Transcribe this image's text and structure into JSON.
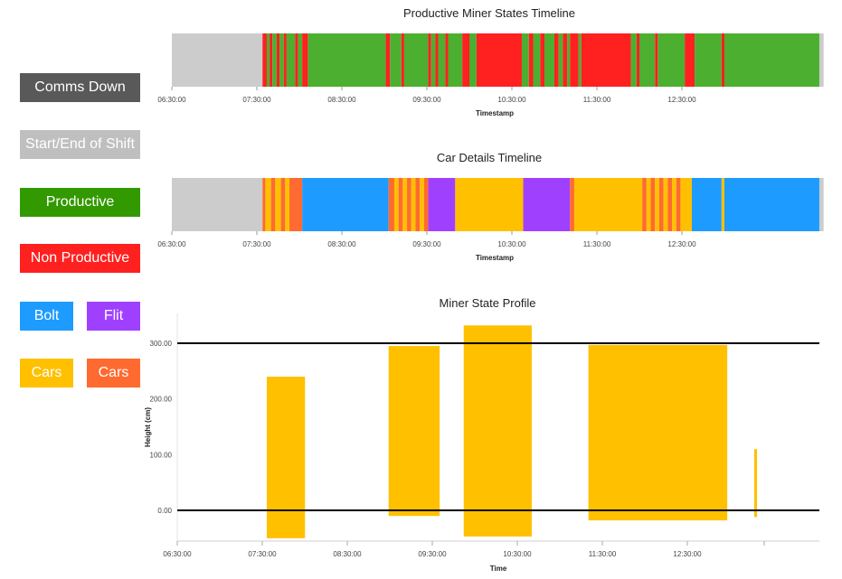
{
  "legend": [
    {
      "label": "Comms Down",
      "color": "#595959",
      "key": "comms-down"
    },
    {
      "label": "Start/End of Shift",
      "color": "#bfbfbf",
      "key": "start-end-of-shift"
    },
    {
      "label": "Productive",
      "color": "#339900",
      "key": "productive"
    },
    {
      "label": "Non Productive",
      "color": "#ff2020",
      "key": "non-productive"
    },
    {
      "label": "Bolt",
      "color": "#1e9bff",
      "key": "bolt"
    },
    {
      "label": "Flit",
      "color": "#a040ff",
      "key": "flit"
    },
    {
      "label": "Cars",
      "color": "#ffc000",
      "key": "cars-yellow"
    },
    {
      "label": "Cars",
      "color": "#ff6a30",
      "key": "cars-orange"
    }
  ],
  "chart_data": [
    {
      "type": "timeline",
      "title": "Productive Miner States Timeline",
      "xlabel": "Timestamp",
      "x_ticks": [
        "06:30:00",
        "07:30:00",
        "08:30:00",
        "09:30:00",
        "10:30:00",
        "11:30:00",
        "12:30:00"
      ],
      "x_range": [
        "06:30",
        "14:10"
      ],
      "segments": [
        {
          "start": "06:30",
          "end": "07:34",
          "state": "Start/End of Shift",
          "color": "#cccccc"
        },
        {
          "start": "07:34",
          "end": "07:37",
          "state": "Non Productive",
          "color": "#ff2020"
        },
        {
          "start": "07:37",
          "end": "07:39",
          "state": "Productive",
          "color": "#4caf30"
        },
        {
          "start": "07:39",
          "end": "07:41",
          "state": "Non Productive",
          "color": "#ff2020"
        },
        {
          "start": "07:41",
          "end": "07:44",
          "state": "Productive",
          "color": "#4caf30"
        },
        {
          "start": "07:44",
          "end": "07:46",
          "state": "Non Productive",
          "color": "#ff2020"
        },
        {
          "start": "07:46",
          "end": "07:49",
          "state": "Productive",
          "color": "#4caf30"
        },
        {
          "start": "07:49",
          "end": "07:51",
          "state": "Non Productive",
          "color": "#ff2020"
        },
        {
          "start": "07:51",
          "end": "07:57",
          "state": "Productive",
          "color": "#4caf30"
        },
        {
          "start": "07:57",
          "end": "07:59",
          "state": "Non Productive",
          "color": "#ff2020"
        },
        {
          "start": "07:59",
          "end": "08:02",
          "state": "Productive",
          "color": "#4caf30"
        },
        {
          "start": "08:02",
          "end": "08:06",
          "state": "Non Productive",
          "color": "#ff2020"
        },
        {
          "start": "08:06",
          "end": "09:01",
          "state": "Productive",
          "color": "#4caf30"
        },
        {
          "start": "09:01",
          "end": "09:04",
          "state": "Non Productive",
          "color": "#ff2020"
        },
        {
          "start": "09:04",
          "end": "09:12",
          "state": "Productive",
          "color": "#4caf30"
        },
        {
          "start": "09:12",
          "end": "09:14",
          "state": "Non Productive",
          "color": "#ff2020"
        },
        {
          "start": "09:14",
          "end": "09:31",
          "state": "Productive",
          "color": "#4caf30"
        },
        {
          "start": "09:31",
          "end": "09:33",
          "state": "Non Productive",
          "color": "#ff2020"
        },
        {
          "start": "09:33",
          "end": "09:36",
          "state": "Productive",
          "color": "#4caf30"
        },
        {
          "start": "09:36",
          "end": "09:38",
          "state": "Non Productive",
          "color": "#ff2020"
        },
        {
          "start": "09:38",
          "end": "09:43",
          "state": "Productive",
          "color": "#4caf30"
        },
        {
          "start": "09:43",
          "end": "09:45",
          "state": "Non Productive",
          "color": "#ff2020"
        },
        {
          "start": "09:45",
          "end": "09:55",
          "state": "Productive",
          "color": "#4caf30"
        },
        {
          "start": "09:55",
          "end": "10:00",
          "state": "Non Productive",
          "color": "#ff2020"
        },
        {
          "start": "10:00",
          "end": "10:05",
          "state": "Productive",
          "color": "#4caf30"
        },
        {
          "start": "10:05",
          "end": "10:37",
          "state": "Non Productive",
          "color": "#ff2020"
        },
        {
          "start": "10:37",
          "end": "10:42",
          "state": "Productive",
          "color": "#4caf30"
        },
        {
          "start": "10:42",
          "end": "10:45",
          "state": "Non Productive",
          "color": "#ff2020"
        },
        {
          "start": "10:45",
          "end": "10:50",
          "state": "Productive",
          "color": "#4caf30"
        },
        {
          "start": "10:50",
          "end": "10:53",
          "state": "Non Productive",
          "color": "#ff2020"
        },
        {
          "start": "10:53",
          "end": "11:00",
          "state": "Productive",
          "color": "#4caf30"
        },
        {
          "start": "11:00",
          "end": "11:03",
          "state": "Non Productive",
          "color": "#ff2020"
        },
        {
          "start": "11:03",
          "end": "11:06",
          "state": "Productive",
          "color": "#4caf30"
        },
        {
          "start": "11:06",
          "end": "11:09",
          "state": "Non Productive",
          "color": "#ff2020"
        },
        {
          "start": "11:09",
          "end": "11:11",
          "state": "Productive",
          "color": "#4caf30"
        },
        {
          "start": "11:11",
          "end": "11:17",
          "state": "Non Productive",
          "color": "#ff2020"
        },
        {
          "start": "11:17",
          "end": "11:19",
          "state": "Productive",
          "color": "#4caf30"
        },
        {
          "start": "11:19",
          "end": "11:54",
          "state": "Non Productive",
          "color": "#ff2020"
        },
        {
          "start": "11:54",
          "end": "11:58",
          "state": "Productive",
          "color": "#4caf30"
        },
        {
          "start": "11:58",
          "end": "12:00",
          "state": "Non Productive",
          "color": "#ff2020"
        },
        {
          "start": "12:00",
          "end": "12:11",
          "state": "Productive",
          "color": "#4caf30"
        },
        {
          "start": "12:11",
          "end": "12:13",
          "state": "Non Productive",
          "color": "#ff2020"
        },
        {
          "start": "12:13",
          "end": "12:32",
          "state": "Productive",
          "color": "#4caf30"
        },
        {
          "start": "12:32",
          "end": "12:39",
          "state": "Non Productive",
          "color": "#ff2020"
        },
        {
          "start": "12:39",
          "end": "12:58",
          "state": "Productive",
          "color": "#4caf30"
        },
        {
          "start": "12:58",
          "end": "13:00",
          "state": "Non Productive",
          "color": "#ff2020"
        },
        {
          "start": "13:00",
          "end": "14:07",
          "state": "Productive",
          "color": "#4caf30"
        },
        {
          "start": "14:07",
          "end": "14:10",
          "state": "Start/End of Shift",
          "color": "#cccccc"
        }
      ]
    },
    {
      "type": "timeline",
      "title": "Car Details Timeline",
      "xlabel": "Timestamp",
      "x_ticks": [
        "06:30:00",
        "07:30:00",
        "08:30:00",
        "09:30:00",
        "10:30:00",
        "11:30:00",
        "12:30:00"
      ],
      "x_range": [
        "06:30",
        "14:10"
      ],
      "segments": [
        {
          "start": "06:30",
          "end": "07:34",
          "state": "Start/End of Shift",
          "color": "#cccccc"
        },
        {
          "start": "07:34",
          "end": "07:36",
          "state": "Cars",
          "color": "#ff6a30"
        },
        {
          "start": "07:36",
          "end": "07:40",
          "state": "Cars",
          "color": "#ffc000"
        },
        {
          "start": "07:40",
          "end": "07:43",
          "state": "Cars",
          "color": "#ff6a30"
        },
        {
          "start": "07:43",
          "end": "07:47",
          "state": "Cars",
          "color": "#ffc000"
        },
        {
          "start": "07:47",
          "end": "07:50",
          "state": "Cars",
          "color": "#ff6a30"
        },
        {
          "start": "07:50",
          "end": "07:53",
          "state": "Cars",
          "color": "#ffc000"
        },
        {
          "start": "07:53",
          "end": "08:02",
          "state": "Cars",
          "color": "#ff6a30"
        },
        {
          "start": "08:02",
          "end": "09:03",
          "state": "Bolt",
          "color": "#1e9bff"
        },
        {
          "start": "09:03",
          "end": "09:07",
          "state": "Cars",
          "color": "#ff6a30"
        },
        {
          "start": "09:07",
          "end": "09:10",
          "state": "Cars",
          "color": "#ffc000"
        },
        {
          "start": "09:10",
          "end": "09:13",
          "state": "Cars",
          "color": "#ff6a30"
        },
        {
          "start": "09:13",
          "end": "09:16",
          "state": "Cars",
          "color": "#ffc000"
        },
        {
          "start": "09:16",
          "end": "09:19",
          "state": "Cars",
          "color": "#ff6a30"
        },
        {
          "start": "09:19",
          "end": "09:22",
          "state": "Cars",
          "color": "#ffc000"
        },
        {
          "start": "09:22",
          "end": "09:25",
          "state": "Cars",
          "color": "#ff6a30"
        },
        {
          "start": "09:25",
          "end": "09:28",
          "state": "Cars",
          "color": "#ffc000"
        },
        {
          "start": "09:28",
          "end": "09:31",
          "state": "Cars",
          "color": "#ff6a30"
        },
        {
          "start": "09:31",
          "end": "09:50",
          "state": "Flit",
          "color": "#a040ff"
        },
        {
          "start": "09:50",
          "end": "10:38",
          "state": "Cars",
          "color": "#ffc000"
        },
        {
          "start": "10:38",
          "end": "11:11",
          "state": "Flit",
          "color": "#a040ff"
        },
        {
          "start": "11:11",
          "end": "11:14",
          "state": "Cars",
          "color": "#ff6a30"
        },
        {
          "start": "11:14",
          "end": "12:02",
          "state": "Cars",
          "color": "#ffc000"
        },
        {
          "start": "12:02",
          "end": "12:05",
          "state": "Cars",
          "color": "#ff6a30"
        },
        {
          "start": "12:05",
          "end": "12:08",
          "state": "Cars",
          "color": "#ffc000"
        },
        {
          "start": "12:08",
          "end": "12:11",
          "state": "Cars",
          "color": "#ff6a30"
        },
        {
          "start": "12:11",
          "end": "12:14",
          "state": "Cars",
          "color": "#ffc000"
        },
        {
          "start": "12:14",
          "end": "12:17",
          "state": "Cars",
          "color": "#ff6a30"
        },
        {
          "start": "12:17",
          "end": "12:20",
          "state": "Cars",
          "color": "#ffc000"
        },
        {
          "start": "12:20",
          "end": "12:23",
          "state": "Cars",
          "color": "#ff6a30"
        },
        {
          "start": "12:23",
          "end": "12:26",
          "state": "Cars",
          "color": "#ffc000"
        },
        {
          "start": "12:26",
          "end": "12:29",
          "state": "Cars",
          "color": "#ff6a30"
        },
        {
          "start": "12:29",
          "end": "12:37",
          "state": "Cars",
          "color": "#ffc000"
        },
        {
          "start": "12:37",
          "end": "12:58",
          "state": "Bolt",
          "color": "#1e9bff"
        },
        {
          "start": "12:58",
          "end": "13:00",
          "state": "Cars",
          "color": "#ffc000"
        },
        {
          "start": "13:00",
          "end": "14:07",
          "state": "Bolt",
          "color": "#1e9bff"
        },
        {
          "start": "14:07",
          "end": "14:10",
          "state": "Start/End of Shift",
          "color": "#cccccc"
        }
      ]
    },
    {
      "type": "bar",
      "title": "Miner State Profile",
      "xlabel": "Time",
      "ylabel": "Height (cm)",
      "x_ticks": [
        "06:30:00",
        "07:30:00",
        "08:30:00",
        "09:30:00",
        "10:30:00",
        "11:30:00",
        "12:30:00"
      ],
      "x_range": [
        "06:30",
        "14:10"
      ],
      "y_ticks": [
        "0.00",
        "100.00",
        "200.00",
        "300.00"
      ],
      "ylim": [
        -60,
        355
      ],
      "reference_lines": [
        300,
        0
      ],
      "bars": [
        {
          "start": "07:37",
          "end": "08:04",
          "low": -50,
          "high": 240
        },
        {
          "start": "09:03",
          "end": "09:39",
          "low": -10,
          "high": 295
        },
        {
          "start": "09:56",
          "end": "10:44",
          "low": -47,
          "high": 332
        },
        {
          "start": "11:24",
          "end": "13:02",
          "low": -18,
          "high": 297
        },
        {
          "start": "13:21",
          "end": "13:23",
          "low": -12,
          "high": 110
        }
      ],
      "bar_color": "#ffc000"
    }
  ]
}
